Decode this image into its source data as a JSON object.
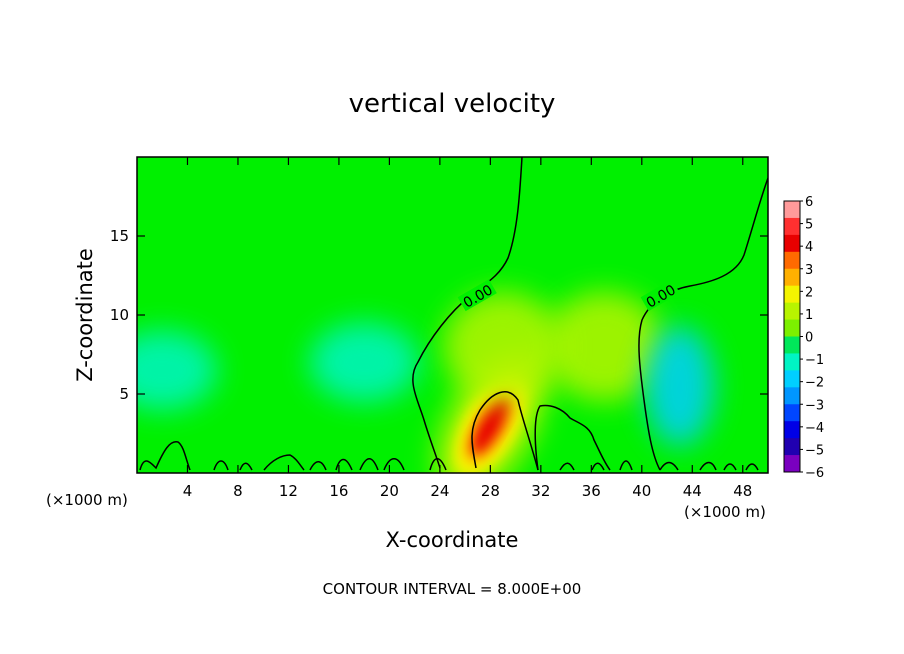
{
  "chart_data": {
    "type": "heatmap",
    "title": "vertical velocity",
    "xlabel": "X-coordinate",
    "ylabel": "Z-coordinate",
    "x_unit_left": "(×1000 m)",
    "x_unit_right": "(×1000 m)",
    "xlim": [
      0,
      50
    ],
    "ylim": [
      0,
      20
    ],
    "x_ticks": [
      4,
      8,
      12,
      16,
      20,
      24,
      28,
      32,
      36,
      40,
      44,
      48
    ],
    "x_tick_labels": [
      "4",
      "8",
      "12",
      "16",
      "20",
      "24",
      "28",
      "32",
      "36",
      "40",
      "44",
      "48"
    ],
    "y_ticks": [
      5,
      10,
      15
    ],
    "y_tick_labels": [
      "5",
      "10",
      "15"
    ],
    "footnote": "CONTOUR INTERVAL = 8.000E+00",
    "contour_labels": [
      {
        "text": "0.00",
        "x": 27,
        "y": 11.2
      },
      {
        "text": "0.00",
        "x": 41.5,
        "y": 11.2
      }
    ],
    "colorbar": {
      "range": [
        -6,
        6
      ],
      "tick_values": [
        6,
        5,
        4,
        3,
        2,
        1,
        0,
        -1,
        -2,
        -3,
        -4,
        -5,
        -6
      ],
      "tick_labels": [
        "6",
        "5",
        "4",
        "3",
        "2",
        "1",
        "0",
        "−1",
        "−2",
        "−3",
        "−4",
        "−5",
        "−6"
      ],
      "colors": [
        "#ff9a9a",
        "#ff3030",
        "#e80000",
        "#ff6a00",
        "#ffb000",
        "#f4f400",
        "#b8f400",
        "#7cf000",
        "#00e85a",
        "#00f4c4",
        "#00cfff",
        "#0096ff",
        "#0046ff",
        "#0000e6",
        "#2000b0",
        "#7a00c0"
      ]
    },
    "features": [
      {
        "kind": "updraft",
        "peak": 5.5,
        "x": 28,
        "y": 3
      },
      {
        "kind": "weak-updraft",
        "peak": 1.2,
        "x": 37,
        "y": 8
      },
      {
        "kind": "weak-updraft",
        "peak": 0.8,
        "x": 29,
        "y": 8
      },
      {
        "kind": "downdraft",
        "peak": -2,
        "x": 43,
        "y": 5.5
      },
      {
        "kind": "weak-downdraft",
        "peak": -0.8,
        "x": 18,
        "y": 7
      },
      {
        "kind": "weak-downdraft",
        "peak": -0.8,
        "x": 2,
        "y": 6.5
      }
    ]
  }
}
